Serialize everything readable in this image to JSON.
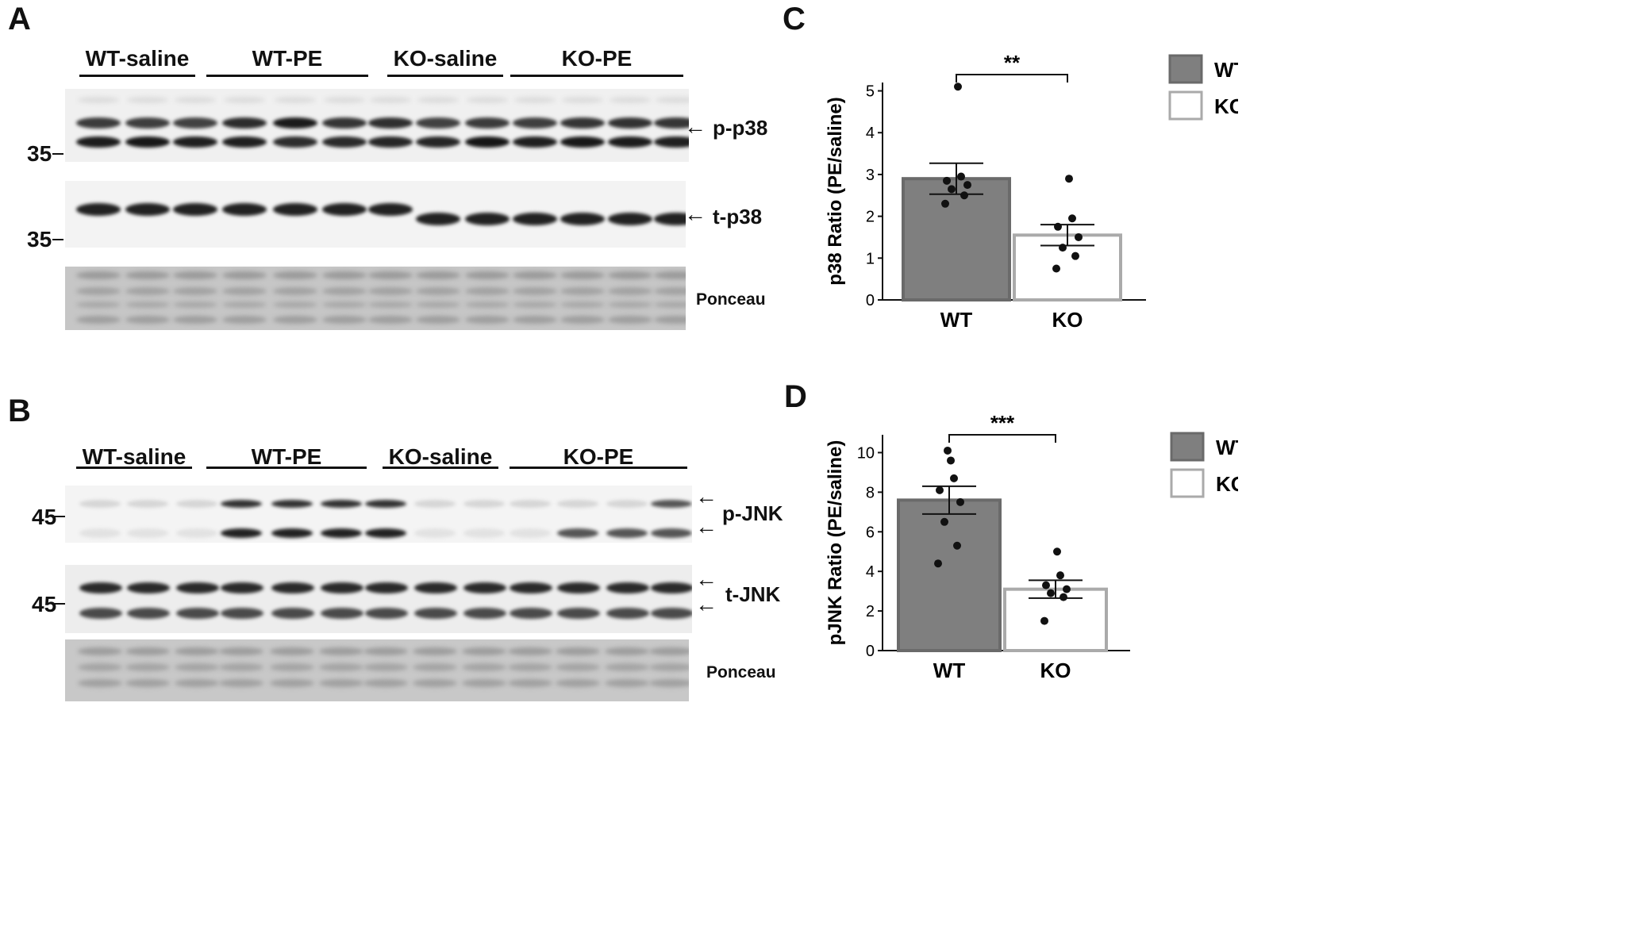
{
  "panel_a": {
    "letter": "A",
    "groups": [
      "WT-saline",
      "WT-PE",
      "KO-saline",
      "KO-PE"
    ],
    "mw_markers": [
      "35",
      "35"
    ],
    "blots": [
      "p-p38",
      "t-p38",
      "Ponceau"
    ]
  },
  "panel_b": {
    "letter": "B",
    "groups": [
      "WT-saline",
      "WT-PE",
      "KO-saline",
      "KO-PE"
    ],
    "mw_markers": [
      "45",
      "45"
    ],
    "blots": [
      "p-JNK",
      "t-JNK",
      "Ponceau"
    ]
  },
  "panel_c": {
    "letter": "C",
    "legend": [
      {
        "name": "WT",
        "color": "#7f7f7f"
      },
      {
        "name": "KO",
        "color": "#ffffff"
      }
    ]
  },
  "panel_d": {
    "letter": "D",
    "legend": [
      {
        "name": "WT",
        "color": "#7f7f7f"
      },
      {
        "name": "KO",
        "color": "#ffffff"
      }
    ]
  },
  "chart_data": [
    {
      "type": "bar",
      "title": "",
      "categories": [
        "WT",
        "KO"
      ],
      "values": [
        2.9,
        1.55
      ],
      "error": [
        0.37,
        0.25
      ],
      "points": [
        [
          2.3,
          2.5,
          2.65,
          2.75,
          2.85,
          2.95,
          5.1
        ],
        [
          0.75,
          1.05,
          1.25,
          1.5,
          1.75,
          1.95,
          2.9
        ]
      ],
      "xlabel": "",
      "ylabel": "p38 Ratio (PE/saline)",
      "ylim": [
        0,
        5.2
      ],
      "yticks": [
        "0",
        "1",
        "2",
        "3",
        "4",
        "5"
      ],
      "significance": "**",
      "colors": {
        "WT": "#7f7f7f",
        "KO": "#ffffff"
      }
    },
    {
      "type": "bar",
      "title": "",
      "categories": [
        "WT",
        "KO"
      ],
      "values": [
        7.6,
        3.1
      ],
      "error": [
        0.7,
        0.45
      ],
      "points": [
        [
          4.4,
          5.3,
          6.5,
          7.5,
          8.1,
          8.7,
          9.6,
          10.1
        ],
        [
          1.5,
          2.7,
          2.9,
          3.1,
          3.3,
          3.8,
          5.0
        ]
      ],
      "xlabel": "",
      "ylabel": "pJNK Ratio (PE/saline)",
      "ylim": [
        0,
        10.9
      ],
      "yticks": [
        "0",
        "2",
        "4",
        "6",
        "8",
        "10"
      ],
      "significance": "***",
      "colors": {
        "WT": "#7f7f7f",
        "KO": "#ffffff"
      }
    }
  ]
}
